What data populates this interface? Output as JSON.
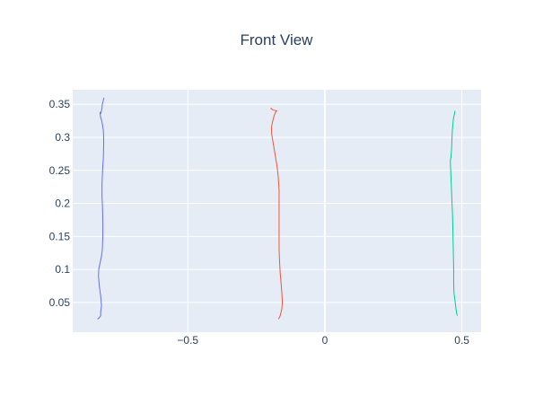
{
  "chart_data": {
    "type": "line",
    "title": "Front View",
    "xlabel": "",
    "ylabel": "",
    "xlim": [
      -0.92,
      0.57
    ],
    "ylim": [
      0.005,
      0.372
    ],
    "x_ticks": [
      {
        "value": -0.5,
        "label": "−0.5"
      },
      {
        "value": 0,
        "label": "0"
      },
      {
        "value": 0.5,
        "label": "0.5"
      }
    ],
    "y_ticks": [
      {
        "value": 0.05,
        "label": "0.05"
      },
      {
        "value": 0.1,
        "label": "0.1"
      },
      {
        "value": 0.15,
        "label": "0.15"
      },
      {
        "value": 0.2,
        "label": "0.2"
      },
      {
        "value": 0.25,
        "label": "0.25"
      },
      {
        "value": 0.3,
        "label": "0.3"
      },
      {
        "value": 0.35,
        "label": "0.35"
      }
    ],
    "grid": true,
    "legend": "none",
    "plot_background": "#E5ECF6",
    "grid_color": "#ffffff",
    "series": [
      {
        "color": "#636EFA",
        "x": [
          -0.83,
          -0.825,
          -0.818,
          -0.818,
          -0.815,
          -0.818,
          -0.823,
          -0.826,
          -0.825,
          -0.82,
          -0.815,
          -0.812,
          -0.81,
          -0.81,
          -0.811,
          -0.813,
          -0.813,
          -0.811,
          -0.808,
          -0.807,
          -0.807,
          -0.808,
          -0.811,
          -0.814,
          -0.818,
          -0.82,
          -0.82,
          -0.818,
          -0.815,
          -0.813,
          -0.812,
          -0.809,
          -0.806
        ],
        "y": [
          0.025,
          0.026,
          0.03,
          0.035,
          0.045,
          0.06,
          0.075,
          0.09,
          0.1,
          0.11,
          0.12,
          0.13,
          0.15,
          0.17,
          0.19,
          0.21,
          0.23,
          0.25,
          0.27,
          0.29,
          0.3,
          0.31,
          0.318,
          0.325,
          0.33,
          0.335,
          0.338,
          0.336,
          0.34,
          0.345,
          0.35,
          0.355,
          0.36
        ]
      },
      {
        "color": "#EF553B",
        "x": [
          -0.17,
          -0.166,
          -0.163,
          -0.16,
          -0.157,
          -0.155,
          -0.157,
          -0.16,
          -0.163,
          -0.165,
          -0.167,
          -0.167,
          -0.167,
          -0.167,
          -0.17,
          -0.174,
          -0.178,
          -0.182,
          -0.186,
          -0.19,
          -0.194,
          -0.195,
          -0.19,
          -0.185,
          -0.18,
          -0.175,
          -0.185,
          -0.192,
          -0.196,
          -0.198
        ],
        "y": [
          0.025,
          0.027,
          0.03,
          0.035,
          0.04,
          0.05,
          0.065,
          0.08,
          0.095,
          0.11,
          0.13,
          0.16,
          0.19,
          0.22,
          0.24,
          0.255,
          0.265,
          0.275,
          0.285,
          0.295,
          0.305,
          0.315,
          0.325,
          0.333,
          0.338,
          0.34,
          0.341,
          0.342,
          0.344,
          0.343
        ]
      },
      {
        "color": "#00CC96",
        "x": [
          0.483,
          0.48,
          0.477,
          0.474,
          0.471,
          0.47,
          0.47,
          0.469,
          0.468,
          0.467,
          0.466,
          0.464,
          0.462,
          0.46,
          0.458,
          0.458,
          0.46,
          0.462,
          0.463,
          0.464,
          0.465,
          0.467,
          0.469,
          0.471,
          0.473,
          0.474,
          0.475
        ],
        "y": [
          0.03,
          0.035,
          0.045,
          0.055,
          0.065,
          0.08,
          0.1,
          0.12,
          0.14,
          0.16,
          0.18,
          0.2,
          0.22,
          0.24,
          0.26,
          0.265,
          0.27,
          0.28,
          0.29,
          0.3,
          0.31,
          0.32,
          0.328,
          0.332,
          0.336,
          0.338,
          0.34
        ]
      }
    ]
  }
}
